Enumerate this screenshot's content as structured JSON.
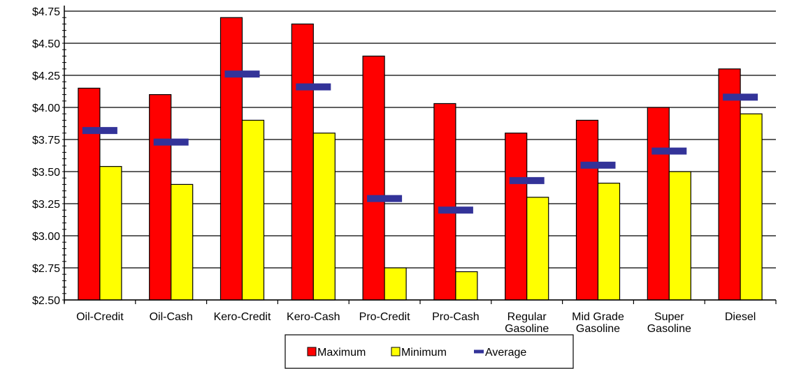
{
  "chart_data": {
    "type": "bar",
    "categories": [
      [
        "Oil-Credit"
      ],
      [
        "Oil-Cash"
      ],
      [
        "Kero-Credit"
      ],
      [
        "Kero-Cash"
      ],
      [
        "Pro-Credit"
      ],
      [
        "Pro-Cash"
      ],
      [
        "Regular",
        "Gasoline"
      ],
      [
        "Mid Grade",
        "Gasoline"
      ],
      [
        "Super",
        "Gasoline"
      ],
      [
        "Diesel"
      ]
    ],
    "series": [
      {
        "name": "Maximum",
        "kind": "bar",
        "color": "#ff0000",
        "values": [
          4.15,
          4.1,
          4.7,
          4.65,
          4.4,
          4.03,
          3.8,
          3.9,
          4.0,
          4.3
        ]
      },
      {
        "name": "Minimum",
        "kind": "bar",
        "color": "#ffff00",
        "values": [
          3.54,
          3.4,
          3.9,
          3.8,
          2.75,
          2.72,
          3.3,
          3.41,
          3.5,
          3.95
        ]
      },
      {
        "name": "Average",
        "kind": "marker",
        "color": "#333399",
        "values": [
          3.82,
          3.73,
          4.26,
          4.16,
          3.29,
          3.2,
          3.43,
          3.55,
          3.66,
          4.08
        ]
      }
    ],
    "y_ticks": [
      "$2.50",
      "$2.75",
      "$3.00",
      "$3.25",
      "$3.50",
      "$3.75",
      "$4.00",
      "$4.25",
      "$4.50",
      "$4.75"
    ],
    "ylim": [
      2.5,
      4.75
    ],
    "grid": true,
    "legend_position": "bottom-center",
    "title": "",
    "xlabel": "",
    "ylabel": ""
  }
}
